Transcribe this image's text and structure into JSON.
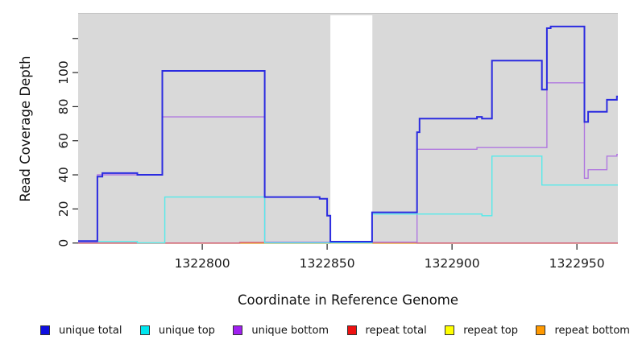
{
  "chart_data": {
    "type": "line",
    "subtype": "step",
    "title": "",
    "xlabel": "Coordinate in Reference Genome",
    "ylabel": "Read Coverage Depth",
    "xlim": [
      1322750.3,
      1322966.4
    ],
    "ylim": [
      0,
      135
    ],
    "background": "#d9d9d9",
    "grid": false,
    "no_data_region": {
      "from": 1322851.3,
      "to": 1322868.1,
      "color": "#ffffff"
    },
    "x_ticks": [
      {
        "value": 1322800,
        "label": "1322800"
      },
      {
        "value": 1322850,
        "label": "1322850"
      },
      {
        "value": 1322900,
        "label": "1322900"
      },
      {
        "value": 1322950,
        "label": "1322950"
      }
    ],
    "y_ticks": [
      {
        "value": 0,
        "label": "0"
      },
      {
        "value": 20,
        "label": "20"
      },
      {
        "value": 40,
        "label": "40"
      },
      {
        "value": 60,
        "label": "60"
      },
      {
        "value": 80,
        "label": "80"
      },
      {
        "value": 100,
        "label": "100"
      },
      {
        "value": 120,
        "label": ""
      }
    ],
    "series": [
      {
        "name": "repeat top",
        "color": "#ffff00",
        "points": [
          [
            1322750.3,
            0
          ]
        ]
      },
      {
        "name": "repeat bottom",
        "color": "#ff9d0a",
        "points": [
          [
            1322750.3,
            0
          ]
        ]
      },
      {
        "name": "repeat total",
        "color": "#d85c7c",
        "points": [
          [
            1322750.3,
            0
          ],
          [
            1322815,
            0.4
          ],
          [
            1322886,
            0
          ]
        ]
      },
      {
        "name": "unique bottom",
        "color": "#b077e0",
        "points": [
          [
            1322750.3,
            0.5
          ],
          [
            1322758,
            40
          ],
          [
            1322784,
            74
          ],
          [
            1322825,
            0.5
          ],
          [
            1322886,
            55
          ],
          [
            1322910,
            56
          ],
          [
            1322938,
            94
          ],
          [
            1322953,
            38
          ],
          [
            1322954.5,
            43
          ],
          [
            1322962,
            51
          ],
          [
            1322966,
            52
          ]
        ]
      },
      {
        "name": "unique top",
        "color": "#55eaea",
        "points": [
          [
            1322750.3,
            0.9
          ],
          [
            1322774,
            0.15
          ],
          [
            1322785,
            27
          ],
          [
            1322825,
            0.15
          ],
          [
            1322868,
            17
          ],
          [
            1322912,
            16
          ],
          [
            1322916,
            51
          ],
          [
            1322936,
            34
          ]
        ]
      },
      {
        "name": "unique total",
        "color": "#2b2be0",
        "points": [
          [
            1322750.3,
            1.2
          ],
          [
            1322758,
            39
          ],
          [
            1322760,
            41
          ],
          [
            1322774,
            40
          ],
          [
            1322784,
            101
          ],
          [
            1322825,
            27
          ],
          [
            1322847,
            26
          ],
          [
            1322850,
            16
          ],
          [
            1322851.3,
            0.8
          ],
          [
            1322868,
            18
          ],
          [
            1322886,
            65
          ],
          [
            1322887,
            73
          ],
          [
            1322910,
            74
          ],
          [
            1322912,
            73
          ],
          [
            1322916,
            107
          ],
          [
            1322936,
            90
          ],
          [
            1322938,
            126
          ],
          [
            1322939.5,
            127
          ],
          [
            1322953,
            71
          ],
          [
            1322954.5,
            77
          ],
          [
            1322962,
            84
          ],
          [
            1322966,
            86
          ]
        ]
      }
    ],
    "legend": {
      "position": "bottom",
      "items": [
        {
          "label": "unique total",
          "color": "#0f0fe0"
        },
        {
          "label": "unique top",
          "color": "#00e5ee"
        },
        {
          "label": "unique bottom",
          "color": "#a020f0"
        },
        {
          "label": "repeat total",
          "color": "#ee1111"
        },
        {
          "label": "repeat top",
          "color": "#ffff00"
        },
        {
          "label": "repeat bottom",
          "color": "#ff9900"
        }
      ]
    }
  }
}
